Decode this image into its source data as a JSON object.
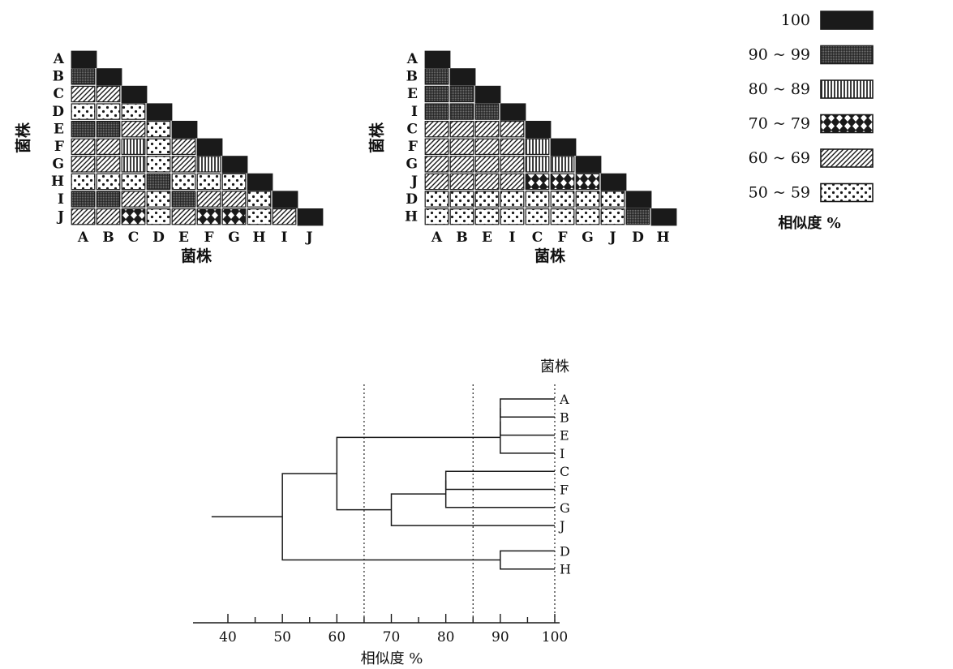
{
  "chart_data": [
    {
      "type": "heatmap",
      "panel": "left",
      "order": [
        "A",
        "B",
        "C",
        "D",
        "E",
        "F",
        "G",
        "H",
        "I",
        "J"
      ],
      "ylabel": "菌株",
      "xlabel": "菌株",
      "rows": [
        [
          100
        ],
        [
          95,
          100
        ],
        [
          65,
          65,
          100
        ],
        [
          55,
          55,
          55,
          100
        ],
        [
          95,
          95,
          65,
          55,
          100
        ],
        [
          65,
          65,
          85,
          55,
          65,
          100
        ],
        [
          65,
          65,
          85,
          55,
          65,
          85,
          100
        ],
        [
          55,
          55,
          55,
          95,
          55,
          55,
          55,
          100
        ],
        [
          95,
          95,
          65,
          55,
          95,
          65,
          65,
          55,
          100
        ],
        [
          65,
          65,
          75,
          55,
          65,
          75,
          75,
          55,
          65,
          100
        ]
      ]
    },
    {
      "type": "heatmap",
      "panel": "middle",
      "order": [
        "A",
        "B",
        "E",
        "I",
        "C",
        "F",
        "G",
        "J",
        "D",
        "H"
      ],
      "ylabel": "菌株",
      "xlabel": "菌株",
      "rows": [
        [
          100
        ],
        [
          95,
          100
        ],
        [
          95,
          95,
          100
        ],
        [
          95,
          95,
          95,
          100
        ],
        [
          65,
          65,
          65,
          65,
          100
        ],
        [
          65,
          65,
          65,
          65,
          85,
          100
        ],
        [
          65,
          65,
          65,
          65,
          85,
          85,
          100
        ],
        [
          65,
          65,
          65,
          65,
          75,
          75,
          75,
          100
        ],
        [
          55,
          55,
          55,
          55,
          55,
          55,
          55,
          55,
          100
        ],
        [
          55,
          55,
          55,
          55,
          55,
          55,
          55,
          55,
          95,
          100
        ]
      ]
    },
    {
      "type": "dendrogram",
      "leaves": [
        "A",
        "B",
        "E",
        "I",
        "C",
        "F",
        "G",
        "J",
        "D",
        "H"
      ],
      "leaf_header": "菌株",
      "xlabel": "相似度 %",
      "xlim": [
        35,
        100
      ],
      "xticks": [
        40,
        50,
        60,
        70,
        80,
        90,
        100
      ],
      "cutoff_lines": [
        65,
        85,
        100
      ],
      "merges": [
        {
          "height": 90,
          "a": "A",
          "b": "B"
        },
        {
          "height": 90,
          "a": "A-B",
          "b": "E"
        },
        {
          "height": 90,
          "a": "A-B-E",
          "b": "I"
        },
        {
          "height": 80,
          "a": "C",
          "b": "F"
        },
        {
          "height": 80,
          "a": "C-F",
          "b": "G"
        },
        {
          "height": 70,
          "a": "C-F-G",
          "b": "J"
        },
        {
          "height": 90,
          "a": "D",
          "b": "H"
        },
        {
          "height": 60,
          "a": "A-B-E-I",
          "b": "C-F-G-J"
        },
        {
          "height": 50,
          "a": "A-B-E-I-C-F-G-J",
          "b": "D-H"
        }
      ],
      "root_start": 37
    }
  ],
  "legend": {
    "title": "相似度 %",
    "items": [
      {
        "label": "100",
        "pattern": "solid"
      },
      {
        "label": "90 ~ 99",
        "pattern": "grid"
      },
      {
        "label": "80 ~ 89",
        "pattern": "vertical"
      },
      {
        "label": "70 ~ 79",
        "pattern": "diamond"
      },
      {
        "label": "60 ~ 69",
        "pattern": "diagonal"
      },
      {
        "label": "50 ~ 59",
        "pattern": "dots"
      }
    ]
  }
}
